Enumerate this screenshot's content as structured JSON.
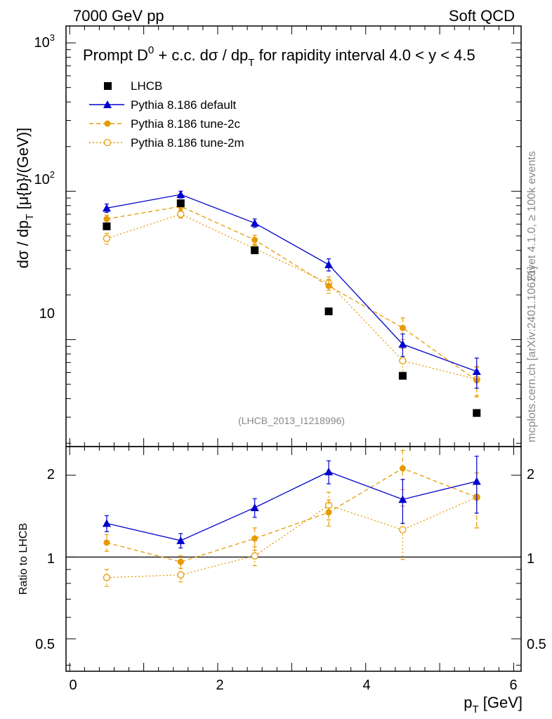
{
  "header": {
    "left": "7000 GeV pp",
    "right": "Soft QCD"
  },
  "side_text": {
    "rivet": "Rivet 4.1.0, ≥ 100k events",
    "mcplots": "mcplots.cern.ch [arXiv:2401.10621]"
  },
  "title": {
    "part1": "Prompt D",
    "sup": "0",
    "part2": " + c.c.  dσ / dp",
    "sub": "T",
    "part3": " for rapidity interval 4.0 < y < 4.5"
  },
  "watermark": "(LHCB_2013_I1218996)",
  "legend": [
    {
      "key": "lhcb",
      "label": "LHCB"
    },
    {
      "key": "default",
      "label": "Pythia 8.186 default"
    },
    {
      "key": "tune2c",
      "label": "Pythia 8.186 tune-2c"
    },
    {
      "key": "tune2m",
      "label": "Pythia 8.186 tune-2m"
    }
  ],
  "axis_labels": {
    "top_y_main": "dσ / dp",
    "top_y_sub": "T",
    "top_y_unit": " [μ{b}/(GeV)]",
    "bottom_y": "Ratio to LHCB",
    "x_main": "p",
    "x_sub": "T",
    "x_unit": " [GeV]"
  },
  "tick_labels": {
    "top_y_1000": "10",
    "top_y_1000_exp": "3",
    "top_y_100": "10",
    "top_y_100_exp": "2",
    "top_y_10": "10",
    "ratio_2": "2",
    "ratio_1": "1",
    "ratio_05": "0.5",
    "ratio_2_right": "2",
    "ratio_1_right": "1",
    "ratio_05_right": "0.5",
    "x_0": "0",
    "x_2": "2",
    "x_4": "4",
    "x_6": "6"
  },
  "colors": {
    "lhcb": "#000000",
    "default": "#0000cc",
    "tune2c": "#e69a00",
    "tune2m": "#e69a00",
    "watermark": "#888888",
    "side_text": "#888888"
  },
  "chart_data": [
    {
      "type": "scatter",
      "name": "main",
      "yscale": "log",
      "xlim": [
        -0.05,
        6.1
      ],
      "ylim": [
        1.9,
        1300
      ],
      "x": [
        0.5,
        1.5,
        2.5,
        3.5,
        4.5,
        5.5
      ],
      "series": [
        {
          "key": "lhcb",
          "name": "LHCB",
          "values": [
            58,
            83,
            40,
            15.5,
            5.7,
            3.2
          ],
          "err": [
            0,
            0,
            0,
            0,
            0,
            0
          ]
        },
        {
          "key": "default",
          "name": "Pythia 8.186 default",
          "values": [
            77,
            95,
            61,
            32,
            9.3,
            6.1
          ],
          "err": [
            5,
            5,
            4,
            3,
            1.6,
            1.4
          ]
        },
        {
          "key": "tune2c",
          "name": "Pythia 8.186 tune-2c",
          "values": [
            65,
            79,
            47,
            23,
            12,
            5.3
          ],
          "err": [
            4,
            4,
            3.5,
            2.5,
            2,
            1.2
          ]
        },
        {
          "key": "tune2m",
          "name": "Pythia 8.186 tune-2m",
          "values": [
            48,
            70,
            41,
            24,
            7.2,
            5.4
          ],
          "err": [
            4,
            4,
            3,
            2.5,
            1.5,
            1.2
          ]
        }
      ]
    },
    {
      "type": "scatter",
      "name": "ratio",
      "yscale": "log",
      "xlim": [
        -0.05,
        6.1
      ],
      "ylim": [
        0.38,
        2.55
      ],
      "ylabel": "Ratio to LHCB",
      "reference": 1,
      "x": [
        0.5,
        1.5,
        2.5,
        3.5,
        4.5,
        5.5
      ],
      "series": [
        {
          "key": "default",
          "values": [
            1.33,
            1.15,
            1.52,
            2.06,
            1.63,
            1.9
          ],
          "err": [
            0.09,
            0.07,
            0.12,
            0.2,
            0.3,
            0.45
          ]
        },
        {
          "key": "tune2c",
          "values": [
            1.13,
            0.96,
            1.17,
            1.46,
            2.12,
            1.66
          ],
          "err": [
            0.08,
            0.05,
            0.11,
            0.16,
            0.35,
            0.38
          ]
        },
        {
          "key": "tune2m",
          "values": [
            0.84,
            0.86,
            1.01,
            1.55,
            1.26,
            1.66
          ],
          "err": [
            0.06,
            0.05,
            0.08,
            0.18,
            0.28,
            0.38
          ]
        }
      ]
    }
  ]
}
